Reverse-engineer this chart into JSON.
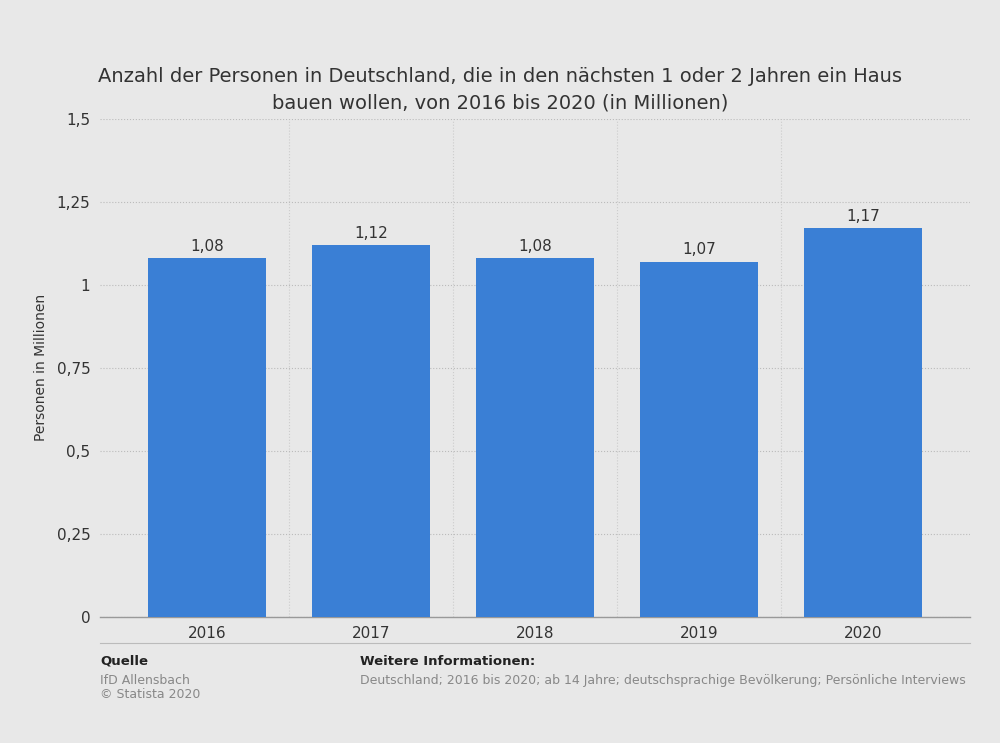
{
  "title": "Anzahl der Personen in Deutschland, die in den nächsten 1 oder 2 Jahren ein Haus\nbauen wollen, von 2016 bis 2020 (in Millionen)",
  "categories": [
    "2016",
    "2017",
    "2018",
    "2019",
    "2020"
  ],
  "values": [
    1.08,
    1.12,
    1.08,
    1.07,
    1.17
  ],
  "bar_color": "#3a7fd5",
  "ylabel": "Personen in Millionen",
  "ylim": [
    0,
    1.5
  ],
  "yticks": [
    0,
    0.25,
    0.5,
    0.75,
    1.0,
    1.25,
    1.5
  ],
  "ytick_labels": [
    "0",
    "0,25",
    "0,5",
    "0,75",
    "1",
    "1,25",
    "1,5"
  ],
  "background_color": "#e8e8e8",
  "plot_bg_color": "#e8e8e8",
  "title_fontsize": 14,
  "axis_label_fontsize": 10,
  "tick_fontsize": 11,
  "bar_label_fontsize": 11,
  "source_label": "Quelle",
  "source_text_line1": "IfD Allensbach",
  "source_text_line2": "© Statista 2020",
  "info_label": "Weitere Informationen:",
  "info_text": "Deutschland; 2016 bis 2020; ab 14 Jahre; deutschsprachige Bevölkerung; Persönliche Interviews",
  "value_labels": [
    "1,08",
    "1,12",
    "1,08",
    "1,07",
    "1,17"
  ],
  "grid_color": "#bbbbbb",
  "text_color": "#333333",
  "source_color": "#888888",
  "vgrid_color": "#cccccc",
  "bar_width": 0.72
}
